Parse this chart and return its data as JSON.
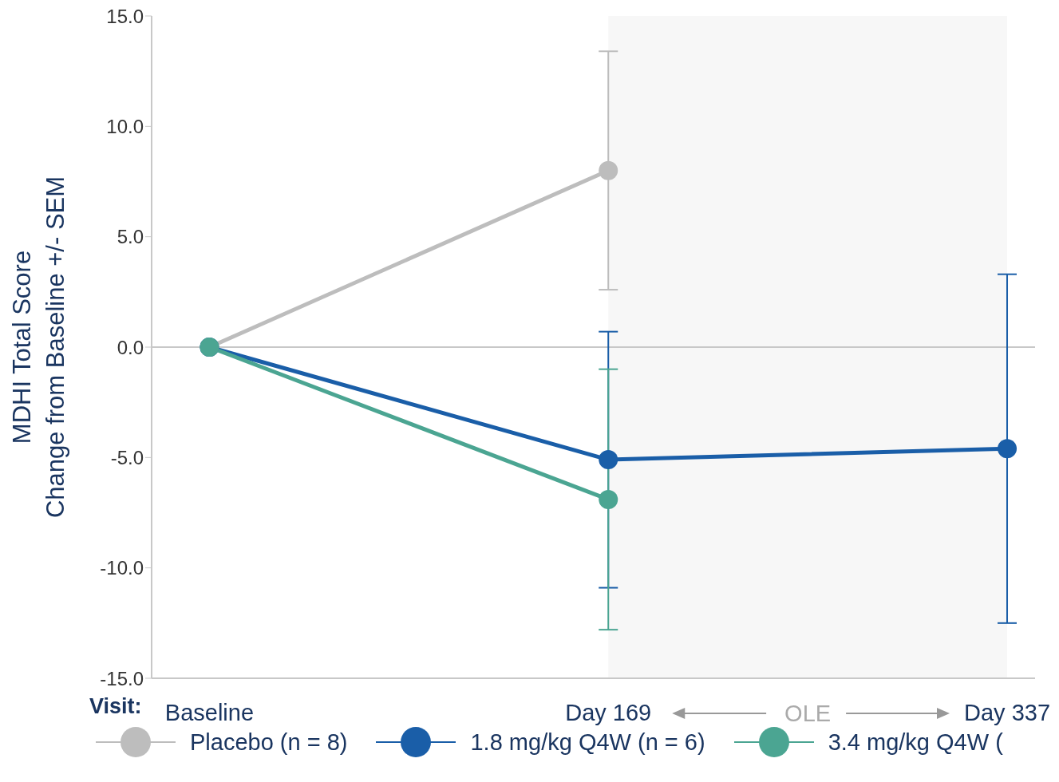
{
  "chart_data": {
    "type": "line",
    "xlabel": "Visit:",
    "ylabel": "MDHI Total Score\nChange from Baseline +/- SEM",
    "categories": [
      "Baseline",
      "Day 169",
      "Day 337"
    ],
    "series": [
      {
        "name": "Placebo (n = 8)",
        "color": "#bdbdbd",
        "values": [
          0,
          8.0,
          null
        ],
        "errors": [
          null,
          5.4,
          null
        ]
      },
      {
        "name": "1.8 mg/kg Q4W (n = 6)",
        "color": "#1a5ea8",
        "values": [
          0,
          -5.1,
          -4.6
        ],
        "errors": [
          null,
          5.8,
          7.9
        ]
      },
      {
        "name": "3.4 mg/kg Q4W (",
        "color": "#4ba592",
        "values": [
          0,
          -6.9,
          null
        ],
        "errors": [
          null,
          5.9,
          null
        ]
      }
    ],
    "ylim": [
      -15,
      15
    ],
    "yticks": [
      {
        "value": -15,
        "label": "-15.0"
      },
      {
        "value": -10,
        "label": "-10.0"
      },
      {
        "value": -5,
        "label": "-5.0"
      },
      {
        "value": 0,
        "label": "0.0"
      },
      {
        "value": 5,
        "label": "5.0"
      },
      {
        "value": 10,
        "label": "10.0"
      },
      {
        "value": 15,
        "label": "15.0"
      }
    ],
    "ref_lines": [
      {
        "axis": "y",
        "value": 0,
        "color": "#c8c8c8"
      }
    ],
    "bands": [
      {
        "axis": "x",
        "from": "Day 169",
        "to": "Day 337",
        "label": "OLE",
        "color": "#f7f7f7"
      }
    ],
    "marker": "circle",
    "line_style": "solid",
    "legend": "bottom"
  }
}
